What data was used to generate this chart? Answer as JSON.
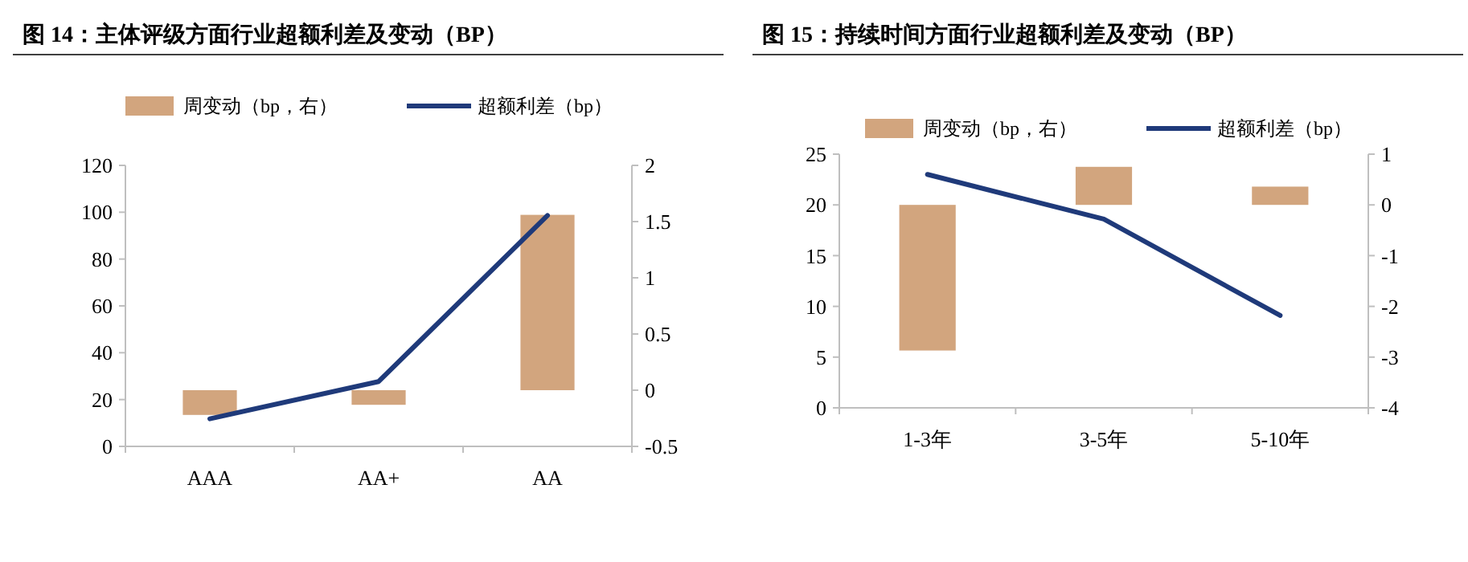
{
  "chart_data": [
    {
      "type": "bar",
      "title": "图 14：主体评级方面行业超额利差及变动（BP）",
      "categories": [
        "AAA",
        "AA+",
        "AA"
      ],
      "ylim": [
        0,
        120
      ],
      "yticks": [
        0,
        20,
        40,
        60,
        80,
        100,
        120
      ],
      "y2lim": [
        -0.5,
        2
      ],
      "y2ticks": [
        -0.5,
        0,
        0.5,
        1,
        1.5,
        2
      ],
      "legend": "top",
      "grid": false,
      "series": [
        {
          "name": "周变动（bp，右）",
          "axis": "y2",
          "color": "#d2a57e",
          "values": [
            -0.22,
            -0.13,
            1.56
          ]
        },
        {
          "name": "超额利差（bp）",
          "type": "line",
          "color": "#1f3a7a",
          "values": [
            11.8,
            27.7,
            98.6
          ]
        }
      ]
    },
    {
      "type": "bar",
      "title": "图 15：持续时间方面行业超额利差及变动（BP）",
      "categories": [
        "1-3年",
        "3-5年",
        "5-10年"
      ],
      "ylim": [
        0,
        25
      ],
      "yticks": [
        0,
        5,
        10,
        15,
        20,
        25
      ],
      "y2lim": [
        -4,
        1
      ],
      "y2ticks": [
        -4,
        -3,
        -2,
        -1,
        0,
        1
      ],
      "legend": "top",
      "grid": false,
      "series": [
        {
          "name": "周变动（bp，右）",
          "axis": "y2",
          "color": "#d2a57e",
          "values": [
            -2.87,
            0.75,
            0.36
          ]
        },
        {
          "name": "超额利差（bp）",
          "type": "line",
          "color": "#1f3a7a",
          "values": [
            23.0,
            18.6,
            9.1
          ]
        }
      ]
    }
  ]
}
